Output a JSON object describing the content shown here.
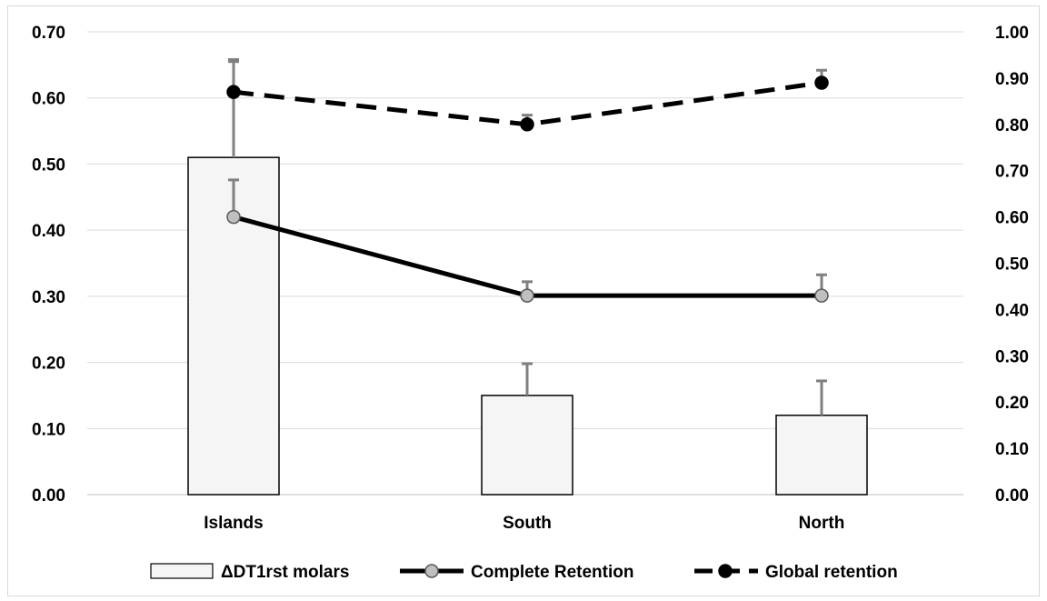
{
  "chart_data": {
    "type": "bar",
    "categories": [
      "Islands",
      "South",
      "North"
    ],
    "left_axis": {
      "ylim": [
        0,
        0.7
      ],
      "ticks": [
        "0.00",
        "0.10",
        "0.20",
        "0.30",
        "0.40",
        "0.50",
        "0.60",
        "0.70"
      ]
    },
    "right_axis": {
      "ylim": [
        0,
        1.0
      ],
      "ticks": [
        "0.00",
        "0.10",
        "0.20",
        "0.30",
        "0.40",
        "0.50",
        "0.60",
        "0.70",
        "0.80",
        "0.90",
        "1.00"
      ]
    },
    "grid": true,
    "legend_position": "bottom",
    "series": [
      {
        "name": "ΔDT1rst molars",
        "kind": "bar",
        "axis": "left",
        "values": [
          0.51,
          0.15,
          0.12
        ],
        "error_plus": [
          0.145,
          0.048,
          0.052
        ],
        "fill": "#f5f5f5",
        "stroke": "#000000"
      },
      {
        "name": "Complete Retention",
        "kind": "line",
        "axis": "right",
        "values": [
          0.6,
          0.43,
          0.43
        ],
        "error_plus": [
          0.08,
          0.03,
          0.045
        ],
        "line_color": "#000000",
        "marker_color": "#bfbfbf",
        "dashed": false
      },
      {
        "name": "Global retention",
        "kind": "line",
        "axis": "right",
        "values": [
          0.87,
          0.8,
          0.89
        ],
        "error_plus": [
          0.07,
          0.02,
          0.027
        ],
        "line_color": "#000000",
        "marker_color": "#000000",
        "dashed": true
      }
    ],
    "colors": {
      "grid": "#d9d9d9",
      "error_bar": "#808080",
      "axis": "#bfbfbf"
    }
  }
}
